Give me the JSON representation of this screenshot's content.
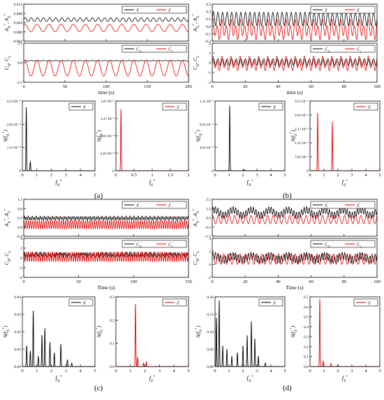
{
  "captions": [
    "(a)",
    "(b)",
    "(c)",
    "(d)"
  ],
  "chart_data": [
    {
      "id": "a-disp",
      "type": "line",
      "ylabel": "A*X, A*Z",
      "xlim": [
        0,
        200
      ],
      "ylim": [
        -0.004,
        0.012
      ],
      "xticks": [
        0,
        50,
        100,
        150,
        200
      ],
      "yticks": [
        -0.004,
        0.0,
        0.004,
        0.008,
        0.012
      ],
      "ytick_labels": [
        "-0.004",
        "0.000",
        "0.004",
        "0.008",
        "0.012"
      ],
      "show_xtick_labels": false,
      "legend": [
        "X",
        "Z"
      ],
      "series": [
        {
          "name": "X",
          "color": "#000000",
          "kind": "sine",
          "mean": 0.0053,
          "amp": 0.0008,
          "freq": 0.135
        },
        {
          "name": "Z",
          "color": "#e00000",
          "kind": "sine",
          "mean": 0.0017,
          "amp": 0.0016,
          "freq": 0.068
        }
      ]
    },
    {
      "id": "a-force",
      "type": "line",
      "ylabel": "CD, CL",
      "xlabel": "time (s)",
      "xlim": [
        0,
        200
      ],
      "ylim": [
        -2.5,
        2.5
      ],
      "xticks": [
        0,
        50,
        100,
        150,
        200
      ],
      "yticks": [
        -2.5,
        0.0,
        2.5
      ],
      "ytick_labels": [
        "-2.5",
        "0.0",
        "2.5"
      ],
      "show_xtick_labels": true,
      "legend": [
        "CD",
        "CL"
      ],
      "series": [
        {
          "name": "CD",
          "color": "#000000",
          "kind": "sine",
          "mean": 0.25,
          "amp": 0.05,
          "freq": 0.135
        },
        {
          "name": "CL",
          "color": "#e00000",
          "kind": "sine",
          "mean": -0.7,
          "amp": 1.0,
          "freq": 0.068
        }
      ]
    },
    {
      "id": "a-spec-x",
      "type": "line",
      "ylabel": "S(f*X)",
      "xlabel": "f*X",
      "xlim": [
        0,
        5
      ],
      "ylim": [
        0,
        0.00045
      ],
      "xticks": [
        0,
        1,
        2,
        3,
        4,
        5
      ],
      "yticks": [
        0,
        0.00015,
        0.0003,
        0.00045
      ],
      "ytick_labels": [
        "0",
        "1.5×10⁻⁴",
        "3.0×10⁻⁴",
        "4.5×10⁻⁴"
      ],
      "show_xtick_labels": true,
      "legend": [
        "X"
      ],
      "series": [
        {
          "name": "X",
          "color": "#000000",
          "kind": "peaks",
          "peaks": [
            [
              0.27,
              0.00041
            ],
            [
              0.55,
              6e-05
            ]
          ]
        }
      ]
    },
    {
      "id": "a-spec-z",
      "type": "line",
      "ylabel": "S(f*Z)",
      "xlabel": "f*Z",
      "xlim": [
        0,
        2.0
      ],
      "ylim": [
        0,
        0.0016
      ],
      "xticks": [
        0,
        0.5,
        1.0,
        1.5,
        2.0
      ],
      "yticks": [
        0,
        0.0004,
        0.0008,
        0.0012,
        0.0016
      ],
      "ytick_labels": [
        "0",
        "4.0×10⁻⁴",
        "8.0×10⁻⁴",
        "1.2×10⁻³",
        "1.6×10⁻³"
      ],
      "show_xtick_labels": true,
      "legend": [
        "Z"
      ],
      "series": [
        {
          "name": "Z",
          "color": "#e00000",
          "kind": "peaks",
          "peaks": [
            [
              0.14,
              0.00142
            ]
          ]
        }
      ]
    },
    {
      "id": "b-disp",
      "type": "line",
      "ylabel": "A*X, A*Z",
      "xlim": [
        0,
        100
      ],
      "ylim": [
        -0.2,
        0.3
      ],
      "xticks": [
        0,
        20,
        40,
        60,
        80,
        100
      ],
      "yticks": [
        -0.2,
        -0.1,
        0.0,
        0.1,
        0.2,
        0.3
      ],
      "ytick_labels": [
        "-0.2",
        "-0.1",
        "0.0",
        "0.1",
        "0.2",
        "0.3"
      ],
      "show_xtick_labels": false,
      "legend": [
        "X",
        "Z"
      ],
      "series": [
        {
          "name": "X",
          "color": "#000000",
          "kind": "sine",
          "mean": 0.1,
          "amp": 0.09,
          "freq": 0.36
        },
        {
          "name": "Z",
          "color": "#e00000",
          "kind": "sine2",
          "mean": -0.05,
          "amp": 0.1,
          "freq": 0.36,
          "amp2": 0.05,
          "freq2": 0.18
        }
      ]
    },
    {
      "id": "b-force",
      "type": "line",
      "ylabel": "CD, CL",
      "xlabel": "time (s)",
      "xlim": [
        0,
        100
      ],
      "ylim": [
        -2,
        2
      ],
      "xticks": [
        0,
        20,
        40,
        60,
        80,
        100
      ],
      "yticks": [
        -2,
        -1,
        0,
        1,
        2
      ],
      "ytick_labels": [
        "-2",
        "-1",
        "0",
        "1",
        "2"
      ],
      "show_xtick_labels": true,
      "legend": [
        "CD",
        "CL"
      ],
      "series": [
        {
          "name": "CD",
          "color": "#000000",
          "kind": "sine",
          "mean": 0.05,
          "amp": 0.35,
          "freq": 0.36
        },
        {
          "name": "CL",
          "color": "#e00000",
          "kind": "sine2",
          "mean": -0.1,
          "amp": 0.55,
          "freq": 0.36,
          "amp2": 0.25,
          "freq2": 0.18
        }
      ]
    },
    {
      "id": "b-spec-x",
      "type": "line",
      "ylabel": "S(f*X)",
      "xlabel": "f*X",
      "xlim": [
        0,
        5
      ],
      "ylim": [
        0,
        0.12
      ],
      "xticks": [
        0,
        1,
        2,
        3,
        4,
        5
      ],
      "yticks": [
        0,
        0.04,
        0.08,
        0.12
      ],
      "ytick_labels": [
        "0",
        "4.0×10⁻²",
        "8.0×10⁻²",
        "1.2×10⁻¹"
      ],
      "show_xtick_labels": true,
      "legend": [
        "X"
      ],
      "series": [
        {
          "name": "X",
          "color": "#000000",
          "kind": "peaks",
          "peaks": [
            [
              1.05,
              0.112
            ],
            [
              2.1,
              0.002
            ]
          ]
        }
      ]
    },
    {
      "id": "b-spec-z",
      "type": "line",
      "ylabel": "S(f*Z)",
      "xlabel": "f*Z",
      "xlim": [
        0,
        5
      ],
      "ylim": [
        0,
        0.035
      ],
      "xticks": [
        0,
        1,
        2,
        3,
        4,
        5
      ],
      "yticks": [
        0,
        0.007,
        0.014,
        0.021,
        0.028,
        0.035
      ],
      "ytick_labels": [
        "0",
        "7.0×10⁻³",
        "1.4×10⁻²",
        "2.1×10⁻²",
        "2.8×10⁻²",
        "3.5×10⁻²"
      ],
      "show_xtick_labels": true,
      "legend": [
        "Z"
      ],
      "series": [
        {
          "name": "Z",
          "color": "#e00000",
          "kind": "peaks",
          "peaks": [
            [
              0.55,
              0.029
            ],
            [
              1.6,
              0.0245
            ]
          ]
        }
      ]
    },
    {
      "id": "c-disp",
      "type": "line",
      "ylabel": "A*X, A*Z",
      "xlim": [
        0,
        150
      ],
      "ylim": [
        -0.4,
        1.2
      ],
      "xticks": [
        0,
        50,
        100,
        150
      ],
      "yticks": [
        -0.4,
        0.0,
        0.4,
        0.8,
        1.2
      ],
      "ytick_labels": [
        "-0.4",
        "0.0",
        "0.4",
        "0.8",
        "1.2"
      ],
      "show_xtick_labels": false,
      "legend": [
        "X",
        "Z"
      ],
      "series": [
        {
          "name": "X",
          "color": "#000000",
          "kind": "sine2",
          "mean": 0.38,
          "amp": 0.07,
          "freq": 0.55,
          "amp2": 0.03,
          "freq2": 0.27
        },
        {
          "name": "Z",
          "color": "#e00000",
          "kind": "sine",
          "mean": 0.1,
          "amp": 0.17,
          "freq": 0.5
        }
      ]
    },
    {
      "id": "c-force",
      "type": "line",
      "ylabel": "CD, CL",
      "xlabel": "Time (s)",
      "xlim": [
        0,
        150
      ],
      "ylim": [
        -4,
        4
      ],
      "xticks": [
        0,
        50,
        100,
        150
      ],
      "yticks": [
        -4,
        -2,
        0,
        2,
        4
      ],
      "ytick_labels": [
        "-4",
        "-2",
        "0",
        "2",
        "4"
      ],
      "show_xtick_labels": true,
      "legend": [
        "CD",
        "CL"
      ],
      "series": [
        {
          "name": "CD",
          "color": "#000000",
          "kind": "sine2",
          "mean": 0.6,
          "amp": 0.35,
          "freq": 0.55,
          "amp2": 0.25,
          "freq2": 0.27
        },
        {
          "name": "CL",
          "color": "#e00000",
          "kind": "sine",
          "mean": 0.2,
          "amp": 0.9,
          "freq": 0.5
        }
      ]
    },
    {
      "id": "c-spec-x",
      "type": "line",
      "ylabel": "S(f*X)",
      "xlabel": "f*X",
      "xlim": [
        0,
        5
      ],
      "ylim": [
        0,
        0.04
      ],
      "xticks": [
        0,
        1,
        2,
        3,
        4,
        5
      ],
      "yticks": [
        0,
        0.01,
        0.02,
        0.03,
        0.04
      ],
      "ytick_labels": [
        "0.00",
        "0.01",
        "0.02",
        "0.03",
        "0.04"
      ],
      "show_xtick_labels": true,
      "legend": [
        "X"
      ],
      "series": [
        {
          "name": "X",
          "color": "#000000",
          "kind": "peaks",
          "peaks": [
            [
              0.3,
              0.012
            ],
            [
              0.55,
              0.009
            ],
            [
              0.75,
              0.032
            ],
            [
              1.1,
              0.006
            ],
            [
              1.35,
              0.018
            ],
            [
              1.55,
              0.022
            ],
            [
              1.9,
              0.014
            ],
            [
              2.2,
              0.008
            ],
            [
              2.65,
              0.013
            ],
            [
              3.1,
              0.004
            ],
            [
              3.4,
              0.002
            ]
          ]
        }
      ]
    },
    {
      "id": "c-spec-z",
      "type": "line",
      "ylabel": "S(f*Z)",
      "xlabel": "f*Z",
      "xlim": [
        0,
        5
      ],
      "ylim": [
        0,
        0.3
      ],
      "xticks": [
        0,
        1,
        2,
        3,
        4,
        5
      ],
      "yticks": [
        0,
        0.1,
        0.2,
        0.3
      ],
      "ytick_labels": [
        "0.0",
        "0.1",
        "0.2",
        "0.3"
      ],
      "show_xtick_labels": true,
      "legend": [
        "Z"
      ],
      "series": [
        {
          "name": "Z",
          "color": "#e00000",
          "kind": "peaks",
          "peaks": [
            [
              1.35,
              0.27
            ],
            [
              1.5,
              0.04
            ],
            [
              1.9,
              0.015
            ],
            [
              2.1,
              0.02
            ]
          ]
        }
      ]
    },
    {
      "id": "d-disp",
      "type": "line",
      "ylabel": "A*X, A*Z",
      "xlim": [
        0,
        100
      ],
      "ylim": [
        -1.5,
        2.5
      ],
      "xticks": [
        0,
        20,
        40,
        60,
        80,
        100
      ],
      "yticks": [
        -1.5,
        -0.5,
        0.5,
        1.5,
        2.5
      ],
      "ytick_labels": [
        "-1.5",
        "-0.5",
        "0.5",
        "1.5",
        "2.5"
      ],
      "show_xtick_labels": false,
      "legend": [
        "X",
        "Z"
      ],
      "series": [
        {
          "name": "X",
          "color": "#000000",
          "kind": "sine2",
          "mean": 1.05,
          "amp": 0.35,
          "freq": 0.65,
          "amp2": 0.3,
          "freq2": 0.09
        },
        {
          "name": "Z",
          "color": "#e00000",
          "kind": "sine",
          "mean": 0.3,
          "amp": 0.45,
          "freq": 0.3
        }
      ]
    },
    {
      "id": "d-force",
      "type": "line",
      "ylabel": "CD, CL",
      "xlabel": "Time (s)",
      "xlim": [
        0,
        100
      ],
      "ylim": [
        -2,
        4
      ],
      "xticks": [
        0,
        20,
        40,
        60,
        80,
        100
      ],
      "yticks": [
        -2,
        0,
        2,
        4
      ],
      "ytick_labels": [
        "-2",
        "0",
        "2",
        "4"
      ],
      "show_xtick_labels": true,
      "legend": [
        "CD",
        "CL"
      ],
      "series": [
        {
          "name": "CD",
          "color": "#000000",
          "kind": "sine2",
          "mean": 1.0,
          "amp": 0.55,
          "freq": 0.65,
          "amp2": 0.3,
          "freq2": 0.09
        },
        {
          "name": "CL",
          "color": "#e00000",
          "kind": "sine",
          "mean": 0.8,
          "amp": 0.8,
          "freq": 0.3
        }
      ]
    },
    {
      "id": "d-spec-x",
      "type": "line",
      "ylabel": "S(f*X)",
      "xlabel": "f*X",
      "xlim": [
        0,
        5
      ],
      "ylim": [
        0,
        0.2
      ],
      "xticks": [
        0,
        1,
        2,
        3,
        4,
        5
      ],
      "yticks": [
        0,
        0.05,
        0.1,
        0.15,
        0.2
      ],
      "ytick_labels": [
        "0.00",
        "0.05",
        "0.10",
        "0.15",
        "0.20"
      ],
      "show_xtick_labels": true,
      "legend": [
        "X"
      ],
      "series": [
        {
          "name": "X",
          "color": "#000000",
          "kind": "peaks",
          "peaks": [
            [
              0.1,
              0.14
            ],
            [
              0.3,
              0.19
            ],
            [
              0.55,
              0.06
            ],
            [
              0.85,
              0.05
            ],
            [
              1.2,
              0.03
            ],
            [
              1.6,
              0.04
            ],
            [
              2.0,
              0.06
            ],
            [
              2.3,
              0.09
            ],
            [
              2.6,
              0.13
            ],
            [
              2.85,
              0.08
            ],
            [
              3.1,
              0.03
            ],
            [
              3.6,
              0.01
            ]
          ]
        }
      ]
    },
    {
      "id": "d-spec-z",
      "type": "line",
      "ylabel": "S(f*Z)",
      "xlabel": "f*Z",
      "xlim": [
        0,
        5
      ],
      "ylim": [
        0,
        0.7
      ],
      "xticks": [
        0,
        1,
        2,
        3,
        4,
        5
      ],
      "yticks": [
        0,
        0.1,
        0.2,
        0.3,
        0.4,
        0.5,
        0.6,
        0.7
      ],
      "ytick_labels": [
        "0.0",
        "0.1",
        "0.2",
        "0.3",
        "0.4",
        "0.5",
        "0.6",
        "0.7"
      ],
      "show_xtick_labels": true,
      "legend": [
        "Z"
      ],
      "series": [
        {
          "name": "Z",
          "color": "#e00000",
          "kind": "peaks",
          "peaks": [
            [
              0.7,
              0.68
            ],
            [
              0.95,
              0.06
            ],
            [
              1.5,
              0.03
            ],
            [
              2.0,
              0.02
            ]
          ]
        }
      ]
    }
  ]
}
